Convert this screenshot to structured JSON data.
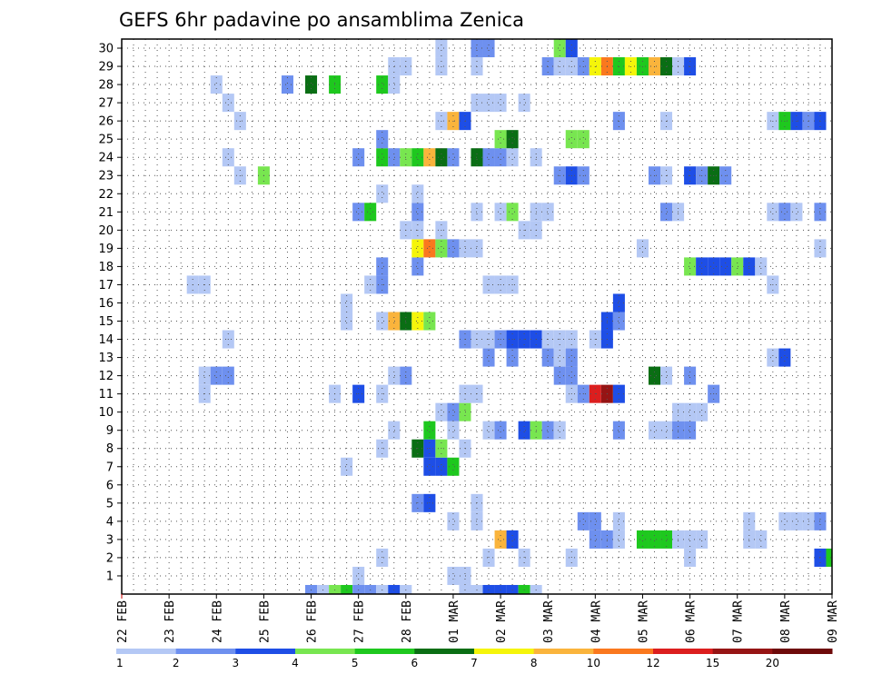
{
  "chart_data": {
    "type": "heatmap",
    "title": "GEFS 6hr padavine po ansamblima Zenica",
    "x_tick_labels": [
      "22 FEB",
      "23 FEB",
      "24 FEB",
      "25 FEB",
      "26 FEB",
      "27 FEB",
      "28 FEB",
      "01 MAR",
      "02 MAR",
      "03 MAR",
      "04 MAR",
      "05 MAR",
      "06 MAR",
      "07 MAR",
      "08 MAR",
      "09 MAR"
    ],
    "y_tick_labels": [
      "1",
      "2",
      "3",
      "4",
      "5",
      "6",
      "7",
      "8",
      "9",
      "10",
      "11",
      "12",
      "13",
      "14",
      "15",
      "16",
      "17",
      "18",
      "19",
      "20",
      "21",
      "22",
      "23",
      "24",
      "25",
      "26",
      "27",
      "28",
      "29",
      "30"
    ],
    "xlim": [
      0,
      60
    ],
    "ylim": [
      0,
      30
    ],
    "grid": true,
    "legend": {
      "labels": [
        "1",
        "2",
        "3",
        "4",
        "5",
        "6",
        "7",
        "8",
        "10",
        "12",
        "15",
        "20"
      ],
      "colors": [
        "#b4c8f5",
        "#6e90ef",
        "#1e4ee6",
        "#78e650",
        "#1ec81e",
        "#0a6e14",
        "#f5f50a",
        "#fab43c",
        "#fa781e",
        "#dc1e1e",
        "#961414",
        "#6e0a0a"
      ]
    },
    "colors": {
      "l": "#b4c8f5",
      "b": "#6e90ef",
      "B": "#1e4ee6",
      "g": "#78e650",
      "G": "#1ec81e",
      "D": "#0a6e14",
      "y": "#f5f50a",
      "o": "#fab43c",
      "O": "#fa781e",
      "r": "#dc1e1e",
      "R": "#961414",
      "k": "#6e0a0a"
    },
    "rows": {
      "0": [
        [
          16,
          "b"
        ],
        [
          17,
          "l"
        ],
        [
          18,
          "g"
        ],
        [
          19,
          "G"
        ],
        [
          20,
          "b"
        ],
        [
          21,
          "b"
        ],
        [
          22,
          "l"
        ],
        [
          23,
          "B"
        ],
        [
          24,
          "l"
        ],
        [
          29,
          "l"
        ],
        [
          30,
          "l"
        ],
        [
          31,
          "B"
        ],
        [
          32,
          "B"
        ],
        [
          33,
          "B"
        ],
        [
          34,
          "G"
        ],
        [
          35,
          "l"
        ]
      ],
      "1": [
        [
          20,
          "l"
        ],
        [
          28,
          "l"
        ],
        [
          29,
          "l"
        ]
      ],
      "2": [
        [
          22,
          "l"
        ],
        [
          31,
          "l"
        ],
        [
          34,
          "l"
        ],
        [
          38,
          "l"
        ],
        [
          48,
          "l"
        ],
        [
          59,
          "B"
        ],
        [
          60,
          "G"
        ]
      ],
      "3": [
        [
          32,
          "o"
        ],
        [
          33,
          "B"
        ],
        [
          40,
          "b"
        ],
        [
          41,
          "b"
        ],
        [
          42,
          "l"
        ],
        [
          44,
          "G"
        ],
        [
          45,
          "G"
        ],
        [
          46,
          "G"
        ],
        [
          47,
          "l"
        ],
        [
          48,
          "l"
        ],
        [
          49,
          "l"
        ],
        [
          53,
          "l"
        ],
        [
          54,
          "l"
        ]
      ],
      "4": [
        [
          28,
          "l"
        ],
        [
          30,
          "l"
        ],
        [
          39,
          "b"
        ],
        [
          40,
          "b"
        ],
        [
          42,
          "l"
        ],
        [
          53,
          "l"
        ],
        [
          56,
          "l"
        ],
        [
          57,
          "l"
        ],
        [
          58,
          "l"
        ],
        [
          59,
          "b"
        ]
      ],
      "5": [
        [
          25,
          "b"
        ],
        [
          26,
          "B"
        ],
        [
          30,
          "l"
        ]
      ],
      "7": [
        [
          19,
          "l"
        ],
        [
          26,
          "B"
        ],
        [
          27,
          "B"
        ],
        [
          28,
          "G"
        ]
      ],
      "8": [
        [
          22,
          "l"
        ],
        [
          25,
          "D"
        ],
        [
          26,
          "B"
        ],
        [
          27,
          "g"
        ],
        [
          29,
          "l"
        ]
      ],
      "9": [
        [
          23,
          "l"
        ],
        [
          26,
          "G"
        ],
        [
          28,
          "l"
        ],
        [
          31,
          "l"
        ],
        [
          32,
          "b"
        ],
        [
          34,
          "B"
        ],
        [
          35,
          "g"
        ],
        [
          36,
          "b"
        ],
        [
          37,
          "l"
        ],
        [
          42,
          "b"
        ],
        [
          45,
          "l"
        ],
        [
          46,
          "l"
        ],
        [
          47,
          "b"
        ],
        [
          48,
          "b"
        ]
      ],
      "10": [
        [
          27,
          "l"
        ],
        [
          28,
          "b"
        ],
        [
          29,
          "g"
        ],
        [
          47,
          "l"
        ],
        [
          48,
          "l"
        ],
        [
          49,
          "l"
        ]
      ],
      "11": [
        [
          7,
          "l"
        ],
        [
          18,
          "l"
        ],
        [
          20,
          "B"
        ],
        [
          22,
          "l"
        ],
        [
          29,
          "l"
        ],
        [
          30,
          "l"
        ],
        [
          38,
          "l"
        ],
        [
          39,
          "b"
        ],
        [
          40,
          "r"
        ],
        [
          41,
          "R"
        ],
        [
          42,
          "B"
        ],
        [
          50,
          "b"
        ]
      ],
      "12": [
        [
          7,
          "l"
        ],
        [
          8,
          "b"
        ],
        [
          9,
          "b"
        ],
        [
          23,
          "l"
        ],
        [
          24,
          "b"
        ],
        [
          37,
          "b"
        ],
        [
          38,
          "b"
        ],
        [
          45,
          "D"
        ],
        [
          46,
          "l"
        ],
        [
          48,
          "b"
        ]
      ],
      "13": [
        [
          31,
          "b"
        ],
        [
          33,
          "b"
        ],
        [
          36,
          "b"
        ],
        [
          37,
          "l"
        ],
        [
          38,
          "b"
        ],
        [
          55,
          "l"
        ],
        [
          56,
          "B"
        ]
      ],
      "14": [
        [
          9,
          "l"
        ],
        [
          29,
          "b"
        ],
        [
          30,
          "l"
        ],
        [
          31,
          "l"
        ],
        [
          32,
          "b"
        ],
        [
          33,
          "B"
        ],
        [
          34,
          "B"
        ],
        [
          35,
          "B"
        ],
        [
          36,
          "l"
        ],
        [
          37,
          "l"
        ],
        [
          38,
          "l"
        ],
        [
          40,
          "l"
        ],
        [
          41,
          "B"
        ]
      ],
      "15": [
        [
          19,
          "l"
        ],
        [
          22,
          "l"
        ],
        [
          23,
          "o"
        ],
        [
          24,
          "D"
        ],
        [
          25,
          "y"
        ],
        [
          26,
          "g"
        ],
        [
          41,
          "B"
        ],
        [
          42,
          "b"
        ]
      ],
      "16": [
        [
          19,
          "l"
        ],
        [
          42,
          "B"
        ]
      ],
      "17": [
        [
          6,
          "l"
        ],
        [
          7,
          "l"
        ],
        [
          21,
          "l"
        ],
        [
          22,
          "b"
        ],
        [
          31,
          "l"
        ],
        [
          32,
          "l"
        ],
        [
          33,
          "l"
        ],
        [
          55,
          "l"
        ]
      ],
      "18": [
        [
          22,
          "b"
        ],
        [
          25,
          "b"
        ],
        [
          48,
          "g"
        ],
        [
          49,
          "B"
        ],
        [
          50,
          "B"
        ],
        [
          51,
          "B"
        ],
        [
          52,
          "g"
        ],
        [
          53,
          "B"
        ],
        [
          54,
          "l"
        ]
      ],
      "19": [
        [
          25,
          "y"
        ],
        [
          26,
          "O"
        ],
        [
          27,
          "g"
        ],
        [
          28,
          "b"
        ],
        [
          29,
          "l"
        ],
        [
          30,
          "l"
        ],
        [
          44,
          "l"
        ],
        [
          59,
          "l"
        ]
      ],
      "20": [
        [
          24,
          "l"
        ],
        [
          25,
          "l"
        ],
        [
          27,
          "l"
        ],
        [
          34,
          "l"
        ],
        [
          35,
          "l"
        ]
      ],
      "21": [
        [
          20,
          "b"
        ],
        [
          21,
          "G"
        ],
        [
          25,
          "b"
        ],
        [
          30,
          "l"
        ],
        [
          32,
          "l"
        ],
        [
          33,
          "g"
        ],
        [
          35,
          "l"
        ],
        [
          36,
          "l"
        ],
        [
          46,
          "b"
        ],
        [
          47,
          "l"
        ],
        [
          55,
          "l"
        ],
        [
          56,
          "b"
        ],
        [
          57,
          "l"
        ],
        [
          59,
          "b"
        ]
      ],
      "22": [
        [
          22,
          "l"
        ],
        [
          25,
          "l"
        ]
      ],
      "23": [
        [
          10,
          "l"
        ],
        [
          12,
          "g"
        ],
        [
          37,
          "b"
        ],
        [
          38,
          "B"
        ],
        [
          39,
          "b"
        ],
        [
          45,
          "b"
        ],
        [
          46,
          "l"
        ],
        [
          48,
          "B"
        ],
        [
          49,
          "b"
        ],
        [
          50,
          "D"
        ],
        [
          51,
          "b"
        ]
      ],
      "24": [
        [
          9,
          "l"
        ],
        [
          20,
          "b"
        ],
        [
          22,
          "G"
        ],
        [
          23,
          "b"
        ],
        [
          24,
          "g"
        ],
        [
          25,
          "G"
        ],
        [
          26,
          "o"
        ],
        [
          27,
          "D"
        ],
        [
          28,
          "b"
        ],
        [
          30,
          "D"
        ],
        [
          31,
          "b"
        ],
        [
          32,
          "b"
        ],
        [
          33,
          "l"
        ],
        [
          35,
          "l"
        ]
      ],
      "25": [
        [
          22,
          "b"
        ],
        [
          32,
          "g"
        ],
        [
          33,
          "D"
        ],
        [
          38,
          "g"
        ],
        [
          39,
          "g"
        ]
      ],
      "26": [
        [
          10,
          "l"
        ],
        [
          27,
          "l"
        ],
        [
          28,
          "o"
        ],
        [
          29,
          "B"
        ],
        [
          42,
          "b"
        ],
        [
          46,
          "l"
        ],
        [
          55,
          "l"
        ],
        [
          56,
          "G"
        ],
        [
          57,
          "B"
        ],
        [
          58,
          "b"
        ],
        [
          59,
          "B"
        ]
      ],
      "27": [
        [
          9,
          "l"
        ],
        [
          30,
          "l"
        ],
        [
          31,
          "l"
        ],
        [
          32,
          "l"
        ],
        [
          34,
          "l"
        ]
      ],
      "28": [
        [
          8,
          "l"
        ],
        [
          14,
          "b"
        ],
        [
          16,
          "D"
        ],
        [
          18,
          "G"
        ],
        [
          22,
          "G"
        ],
        [
          23,
          "l"
        ]
      ],
      "29": [
        [
          23,
          "l"
        ],
        [
          24,
          "l"
        ],
        [
          27,
          "l"
        ],
        [
          30,
          "l"
        ],
        [
          36,
          "b"
        ],
        [
          37,
          "l"
        ],
        [
          38,
          "l"
        ],
        [
          39,
          "b"
        ],
        [
          40,
          "y"
        ],
        [
          41,
          "O"
        ],
        [
          42,
          "G"
        ],
        [
          43,
          "y"
        ],
        [
          44,
          "G"
        ],
        [
          45,
          "o"
        ],
        [
          46,
          "D"
        ],
        [
          47,
          "l"
        ],
        [
          48,
          "B"
        ]
      ],
      "30": [
        [
          27,
          "l"
        ],
        [
          30,
          "b"
        ],
        [
          31,
          "b"
        ],
        [
          37,
          "g"
        ],
        [
          38,
          "B"
        ]
      ]
    }
  }
}
